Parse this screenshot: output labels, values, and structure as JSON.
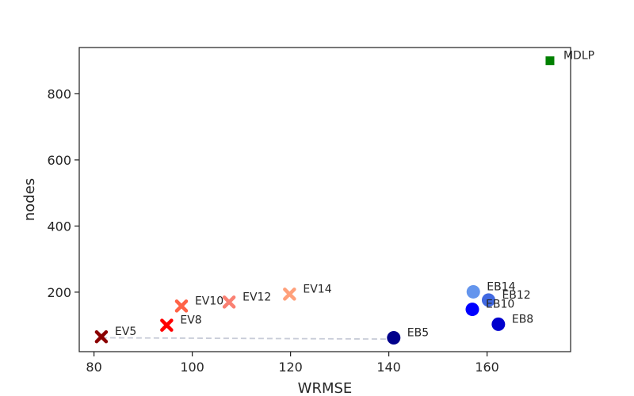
{
  "chart_data": {
    "type": "scatter",
    "title": "",
    "xlabel": "WRMSE",
    "ylabel": "nodes",
    "xlim": [
      77,
      177
    ],
    "ylim": [
      20,
      940
    ],
    "xticks": [
      80,
      100,
      120,
      140,
      160
    ],
    "yticks": [
      200,
      400,
      600,
      800
    ],
    "grid": false,
    "legend": "none",
    "points": [
      {
        "name": "EV5",
        "x": 81.5,
        "y": 65,
        "marker": "x",
        "color": "#8b0000"
      },
      {
        "name": "EV8",
        "x": 94.8,
        "y": 100,
        "marker": "x",
        "color": "#ff0000"
      },
      {
        "name": "EV10",
        "x": 97.8,
        "y": 158,
        "marker": "x",
        "color": "#ff6347"
      },
      {
        "name": "EV12",
        "x": 107.5,
        "y": 170,
        "marker": "x",
        "color": "#fa8072"
      },
      {
        "name": "EV14",
        "x": 119.8,
        "y": 194,
        "marker": "x",
        "color": "#ffa07a"
      },
      {
        "name": "EB5",
        "x": 141.0,
        "y": 62,
        "marker": "circle",
        "color": "#00008b"
      },
      {
        "name": "EB8",
        "x": 162.3,
        "y": 103,
        "marker": "circle",
        "color": "#0000cd"
      },
      {
        "name": "EB10",
        "x": 157.0,
        "y": 148,
        "marker": "circle",
        "color": "#0000ff"
      },
      {
        "name": "EB12",
        "x": 160.3,
        "y": 176,
        "marker": "circle",
        "color": "#4169e1"
      },
      {
        "name": "EB14",
        "x": 157.2,
        "y": 201,
        "marker": "circle",
        "color": "#6495ed"
      },
      {
        "name": "MDLP",
        "x": 172.8,
        "y": 900,
        "marker": "square",
        "color": "#008000"
      }
    ],
    "dashed_line": {
      "x": [
        81.5,
        141.0
      ],
      "y": [
        62,
        58
      ],
      "color": "#c8ccd8"
    }
  }
}
